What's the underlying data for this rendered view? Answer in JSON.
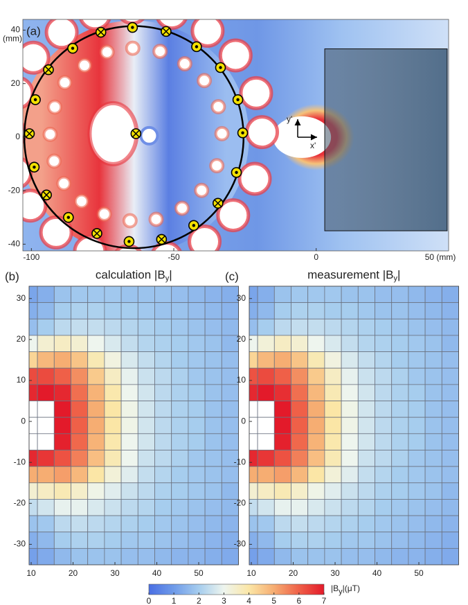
{
  "chart_data": [
    {
      "type": "field_map",
      "panel_label": "(a)",
      "xlim": [
        -103,
        46.5
      ],
      "ylim": [
        -42.5,
        44
      ],
      "xticks": [
        -100,
        -50,
        0,
        {
          "value": 50,
          "label": "50 (mm)"
        }
      ],
      "yticks": [
        -40,
        -20,
        0,
        20,
        40
      ],
      "y_unit": "(mm)",
      "ring": {
        "x": [
          -102.5,
          -25.5
        ],
        "y": [
          -41.5,
          41.5
        ]
      },
      "sample_box": {
        "x": [
          3,
          46
        ],
        "y": [
          -35,
          33
        ]
      },
      "frame_labels": [
        "y'",
        "x'"
      ],
      "coils": [
        {
          "x": -64.5,
          "y": 41,
          "dir": "out"
        },
        {
          "x": -52.7,
          "y": 39.5,
          "dir": "in"
        },
        {
          "x": -42,
          "y": 33.8,
          "dir": "out"
        },
        {
          "x": -33.6,
          "y": 26,
          "dir": "out"
        },
        {
          "x": -27.5,
          "y": 14,
          "dir": "out"
        },
        {
          "x": -25.8,
          "y": 1.6,
          "dir": "out"
        },
        {
          "x": -28,
          "y": -13.2,
          "dir": "out"
        },
        {
          "x": -34.5,
          "y": -24.7,
          "dir": "in"
        },
        {
          "x": -43,
          "y": -33,
          "dir": "out"
        },
        {
          "x": -54.3,
          "y": -38.2,
          "dir": "in"
        },
        {
          "x": -65.7,
          "y": -39,
          "dir": "out"
        },
        {
          "x": -77,
          "y": -36,
          "dir": "in"
        },
        {
          "x": -87,
          "y": -30,
          "dir": "out"
        },
        {
          "x": -94.7,
          "y": -21.6,
          "dir": "in"
        },
        {
          "x": -99,
          "y": -11.2,
          "dir": "out"
        },
        {
          "x": -100.7,
          "y": 1.3,
          "dir": "in"
        },
        {
          "x": -98.6,
          "y": 14,
          "dir": "out"
        },
        {
          "x": -94,
          "y": 25.2,
          "dir": "in"
        },
        {
          "x": -85.5,
          "y": 33.2,
          "dir": "out"
        },
        {
          "x": -75.6,
          "y": 39.2,
          "dir": "in"
        },
        {
          "x": -63.3,
          "y": 1.3,
          "dir": "in"
        }
      ]
    },
    {
      "type": "heatmap",
      "panel_label": "(b)",
      "title": [
        "calculation |B",
        "y",
        "|"
      ],
      "xlim": [
        9.5,
        59.5
      ],
      "ylim": [
        -35,
        33
      ],
      "xticks": [
        10,
        20,
        30,
        40,
        50
      ],
      "yticks": [
        -30,
        -20,
        -10,
        0,
        10,
        20,
        30
      ],
      "x_edges": [
        9.5,
        11.5,
        15.5,
        19.5,
        23.5,
        27.5,
        31.5,
        35.5,
        39.5,
        43.5,
        47.5,
        51.5,
        55.5,
        59.5
      ],
      "y_edges": [
        33,
        29,
        25,
        21,
        17,
        13,
        9,
        5,
        1,
        -3,
        -7,
        -11,
        -15,
        -19,
        -23,
        -27,
        -31,
        -35
      ],
      "values": [
        [
          1.2,
          1.4,
          1.8,
          1.9,
          1.9,
          1.9,
          1.8,
          1.8,
          1.8,
          1.7,
          1.6,
          1.5,
          1.4
        ],
        [
          1.4,
          1.6,
          2.0,
          2.1,
          2.1,
          2.0,
          2.0,
          1.9,
          1.8,
          1.8,
          1.7,
          1.6,
          1.5
        ],
        [
          1.7,
          2.0,
          2.3,
          2.4,
          2.4,
          2.3,
          2.2,
          2.1,
          2.0,
          1.9,
          1.8,
          1.7,
          1.6
        ],
        [
          3.0,
          3.4,
          3.6,
          3.4,
          3.0,
          2.7,
          2.4,
          2.2,
          2.1,
          2.0,
          1.9,
          1.8,
          1.6
        ],
        [
          4.3,
          4.8,
          5.0,
          4.6,
          3.8,
          3.2,
          2.7,
          2.4,
          2.2,
          2.0,
          1.9,
          1.8,
          1.7
        ],
        [
          6.3,
          6.3,
          6.0,
          5.4,
          4.5,
          3.6,
          2.9,
          2.5,
          2.3,
          2.1,
          1.9,
          1.8,
          1.7
        ],
        [
          6.8,
          7.0,
          6.8,
          5.8,
          4.9,
          3.9,
          3.0,
          2.6,
          2.3,
          2.1,
          2.0,
          1.8,
          1.7
        ],
        [
          8,
          8,
          7.0,
          6.0,
          5.0,
          4.0,
          3.1,
          2.6,
          2.3,
          2.1,
          2.0,
          1.8,
          1.7
        ],
        [
          8,
          8,
          7.0,
          6.0,
          5.0,
          4.0,
          3.1,
          2.6,
          2.3,
          2.1,
          2.0,
          1.8,
          1.7
        ],
        [
          8,
          8,
          6.9,
          5.9,
          4.9,
          3.9,
          3.0,
          2.6,
          2.3,
          2.1,
          2.0,
          1.8,
          1.7
        ],
        [
          6.8,
          6.6,
          6.2,
          5.6,
          4.7,
          3.8,
          3.0,
          2.5,
          2.3,
          2.1,
          1.9,
          1.8,
          1.7
        ],
        [
          5.0,
          5.0,
          5.2,
          4.8,
          4.0,
          3.3,
          2.8,
          2.4,
          2.2,
          2.0,
          1.9,
          1.8,
          1.7
        ],
        [
          3.4,
          3.6,
          3.8,
          3.5,
          3.1,
          2.8,
          2.5,
          2.3,
          2.1,
          2.0,
          1.9,
          1.8,
          1.6
        ],
        [
          2.4,
          2.6,
          2.9,
          2.9,
          2.7,
          2.5,
          2.3,
          2.2,
          2.0,
          1.9,
          1.8,
          1.7,
          1.6
        ],
        [
          1.8,
          1.9,
          2.3,
          2.4,
          2.3,
          2.2,
          2.1,
          2.0,
          1.9,
          1.8,
          1.7,
          1.6,
          1.5
        ],
        [
          1.4,
          1.6,
          2.0,
          2.1,
          2.1,
          2.0,
          1.9,
          1.9,
          1.8,
          1.7,
          1.6,
          1.5,
          1.4
        ],
        [
          1.1,
          1.3,
          1.6,
          1.8,
          1.8,
          1.8,
          1.7,
          1.7,
          1.6,
          1.5,
          1.5,
          1.4,
          1.3
        ]
      ]
    },
    {
      "type": "heatmap",
      "panel_label": "(c)",
      "title": [
        "measurement |B",
        "y",
        "|"
      ],
      "xlim": [
        9.5,
        59.5
      ],
      "ylim": [
        -35,
        33
      ],
      "xticks": [
        10,
        20,
        30,
        40,
        50
      ],
      "yticks": [
        -30,
        -20,
        -10,
        0,
        10,
        20,
        30
      ],
      "x_edges": [
        9.5,
        11.5,
        15.5,
        19.5,
        23.5,
        27.5,
        31.5,
        35.5,
        39.5,
        43.5,
        47.5,
        51.5,
        55.5,
        59.5
      ],
      "y_edges": [
        33,
        29,
        25,
        21,
        17,
        13,
        9,
        5,
        1,
        -3,
        -7,
        -11,
        -15,
        -19,
        -23,
        -27,
        -31,
        -35
      ],
      "values": [
        [
          1.2,
          1.4,
          1.8,
          1.9,
          1.9,
          1.9,
          1.8,
          1.8,
          1.7,
          1.7,
          1.6,
          1.5,
          1.4
        ],
        [
          1.4,
          1.6,
          2.0,
          2.1,
          2.1,
          2.0,
          2.0,
          1.9,
          1.8,
          1.8,
          1.7,
          1.6,
          1.5
        ],
        [
          1.7,
          2.0,
          2.3,
          2.4,
          2.4,
          2.3,
          2.2,
          2.1,
          2.0,
          1.9,
          1.8,
          1.7,
          1.6
        ],
        [
          3.0,
          3.3,
          3.6,
          3.4,
          3.0,
          2.7,
          2.4,
          2.2,
          2.1,
          2.0,
          1.9,
          1.8,
          1.6
        ],
        [
          4.3,
          4.8,
          5.0,
          4.6,
          3.8,
          3.2,
          2.7,
          2.4,
          2.2,
          2.0,
          1.9,
          1.8,
          1.7
        ],
        [
          6.2,
          6.3,
          6.0,
          5.4,
          4.5,
          3.6,
          2.9,
          2.5,
          2.3,
          2.1,
          1.9,
          1.8,
          1.7
        ],
        [
          6.8,
          7.0,
          6.7,
          5.8,
          4.8,
          3.8,
          3.0,
          2.6,
          2.3,
          2.1,
          2.0,
          1.8,
          1.7
        ],
        [
          8,
          8,
          7.0,
          6.0,
          5.0,
          4.0,
          3.1,
          2.6,
          2.3,
          2.1,
          2.0,
          1.8,
          1.7
        ],
        [
          8,
          8,
          7.0,
          6.0,
          5.0,
          4.0,
          3.1,
          2.6,
          2.3,
          2.1,
          2.0,
          1.8,
          1.7
        ],
        [
          8,
          8,
          6.9,
          5.9,
          4.9,
          3.9,
          3.0,
          2.6,
          2.3,
          2.1,
          2.0,
          1.8,
          1.7
        ],
        [
          6.8,
          6.6,
          6.2,
          5.6,
          4.7,
          3.8,
          3.0,
          2.5,
          2.3,
          2.1,
          1.9,
          1.8,
          1.7
        ],
        [
          5.0,
          5.0,
          5.2,
          4.8,
          4.0,
          3.3,
          2.8,
          2.4,
          2.2,
          2.0,
          1.9,
          1.8,
          1.7
        ],
        [
          3.4,
          3.6,
          3.8,
          3.5,
          3.1,
          2.8,
          2.5,
          2.3,
          2.1,
          2.0,
          1.9,
          1.8,
          1.6
        ],
        [
          2.4,
          2.6,
          2.9,
          2.9,
          2.7,
          2.5,
          2.3,
          2.2,
          2.0,
          1.9,
          1.8,
          1.7,
          1.6
        ],
        [
          1.8,
          1.9,
          2.3,
          2.4,
          2.3,
          2.2,
          2.1,
          2.0,
          1.9,
          1.8,
          1.7,
          1.6,
          1.5
        ],
        [
          1.4,
          1.6,
          2.0,
          2.1,
          2.1,
          2.0,
          1.9,
          1.9,
          1.8,
          1.7,
          1.6,
          1.5,
          1.4
        ],
        [
          1.1,
          1.3,
          1.6,
          1.8,
          1.8,
          1.8,
          1.7,
          1.7,
          1.6,
          1.5,
          1.5,
          1.4,
          1.3
        ]
      ]
    },
    {
      "type": "colorbar",
      "label": [
        "|B",
        "y",
        "|(μT)"
      ],
      "range": [
        0,
        7
      ],
      "ticks": [
        0,
        1,
        2,
        3,
        4,
        5,
        6,
        7
      ],
      "colors": [
        "#4a6fe3",
        "#6f9be9",
        "#a6cdee",
        "#eef5ee",
        "#fbe6a6",
        "#f6ad72",
        "#ef6048",
        "#e31a2a"
      ],
      "over_color": "#ffffff"
    }
  ]
}
